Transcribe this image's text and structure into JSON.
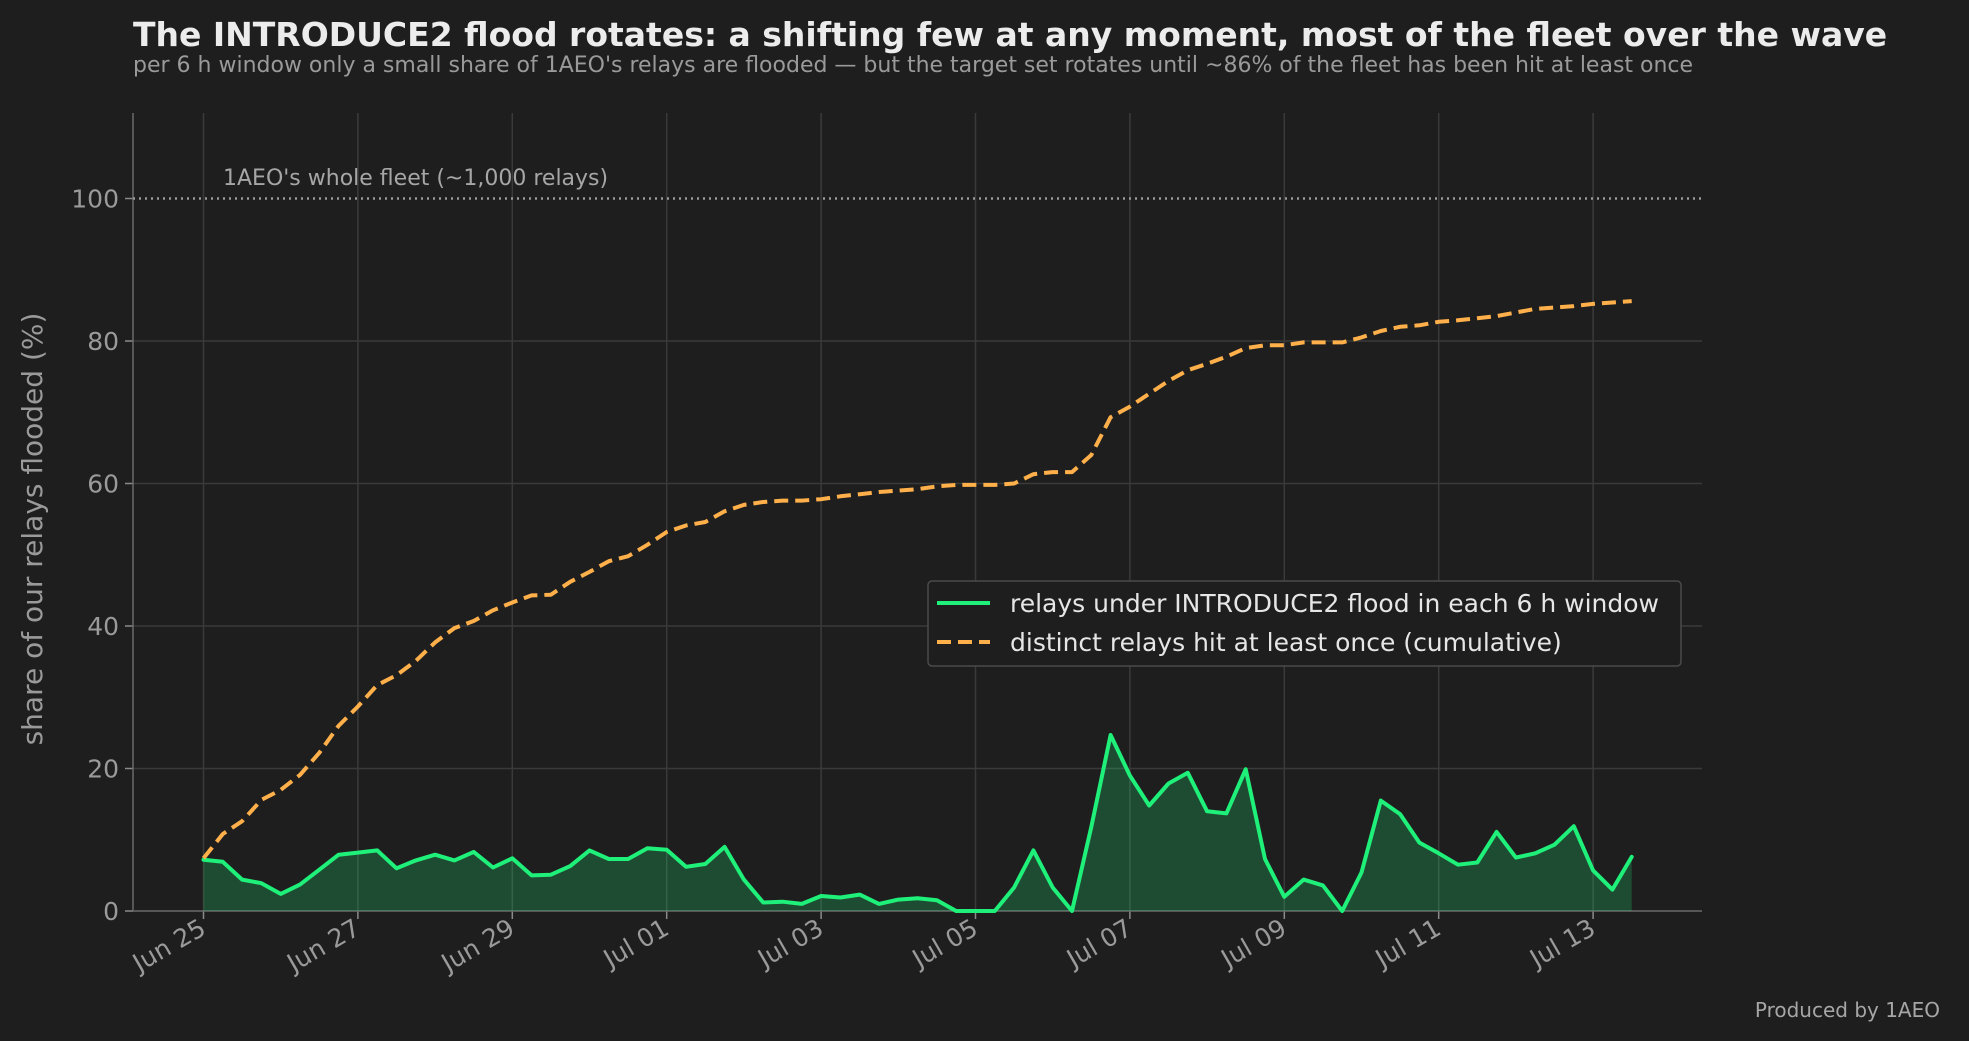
{
  "chart_data": {
    "type": "line",
    "title": "The INTRODUCE2 flood rotates: a shifting few at any moment, most of the fleet over the wave",
    "subtitle": "per 6 h window only a small share of 1AEO's relays are flooded — but the target set rotates until ~86% of the fleet has been hit at least once",
    "ylabel": "share of our relays flooded  (%)",
    "xlabel": "",
    "ylim": [
      0,
      112
    ],
    "y_ticks": [
      0,
      20,
      40,
      60,
      80,
      100
    ],
    "x_ticks": [
      "Jun 25",
      "Jun 27",
      "Jun 29",
      "Jul 01",
      "Jul 03",
      "Jul 05",
      "Jul 07",
      "Jul 09",
      "Jul 11",
      "Jul 13"
    ],
    "x_start": "Jun 25",
    "x_step_hours": 6,
    "grid": true,
    "legend_placement": "center-right",
    "reference_line": {
      "y": 100,
      "label": "1AEO's whole fleet (~1,000 relays)"
    },
    "credit": "Produced by 1AEO",
    "series": [
      {
        "name": "relays under INTRODUCE2 flood in each 6 h window",
        "color": "#1ef07a",
        "style": "solid",
        "filled": true,
        "values": [
          7.2,
          6.9,
          4.4,
          3.9,
          2.4,
          3.7,
          5.8,
          7.9,
          8.2,
          8.5,
          6.0,
          7.1,
          7.9,
          7.1,
          8.3,
          6.1,
          7.4,
          5.0,
          5.1,
          6.3,
          8.5,
          7.3,
          7.3,
          8.8,
          8.6,
          6.2,
          6.6,
          9.0,
          4.4,
          1.2,
          1.3,
          1.0,
          2.1,
          1.9,
          2.3,
          1.0,
          1.6,
          1.8,
          1.5,
          0.0,
          0.0,
          0.0,
          3.3,
          8.5,
          3.3,
          0.0,
          11.8,
          24.7,
          19.0,
          14.8,
          17.9,
          19.4,
          14.0,
          13.7,
          19.9,
          7.3,
          2.0,
          4.4,
          3.6,
          0.0,
          5.4,
          15.5,
          13.6,
          9.6,
          8.1,
          6.5,
          6.8,
          11.1,
          7.5,
          8.1,
          9.3,
          11.9,
          5.7,
          3.0,
          7.6
        ]
      },
      {
        "name": "distinct relays hit at least once (cumulative)",
        "color": "#ffb04a",
        "style": "dashed",
        "filled": false,
        "values": [
          7.4,
          10.8,
          12.6,
          15.6,
          17.0,
          19.1,
          22.2,
          26.0,
          28.7,
          31.7,
          33.1,
          35.1,
          37.7,
          39.7,
          40.7,
          42.2,
          43.3,
          44.3,
          44.4,
          46.2,
          47.6,
          49.1,
          49.8,
          51.4,
          53.2,
          54.1,
          54.6,
          56.1,
          57.0,
          57.4,
          57.6,
          57.6,
          57.8,
          58.2,
          58.5,
          58.8,
          59.0,
          59.2,
          59.6,
          59.8,
          59.8,
          59.8,
          60.0,
          61.3,
          61.6,
          61.6,
          64.0,
          69.3,
          70.8,
          72.6,
          74.4,
          75.9,
          76.8,
          77.8,
          79.0,
          79.4,
          79.4,
          79.8,
          79.8,
          79.8,
          80.5,
          81.4,
          82.0,
          82.2,
          82.7,
          82.9,
          83.2,
          83.5,
          84.0,
          84.5,
          84.7,
          84.9,
          85.2,
          85.4,
          85.6
        ]
      }
    ]
  }
}
